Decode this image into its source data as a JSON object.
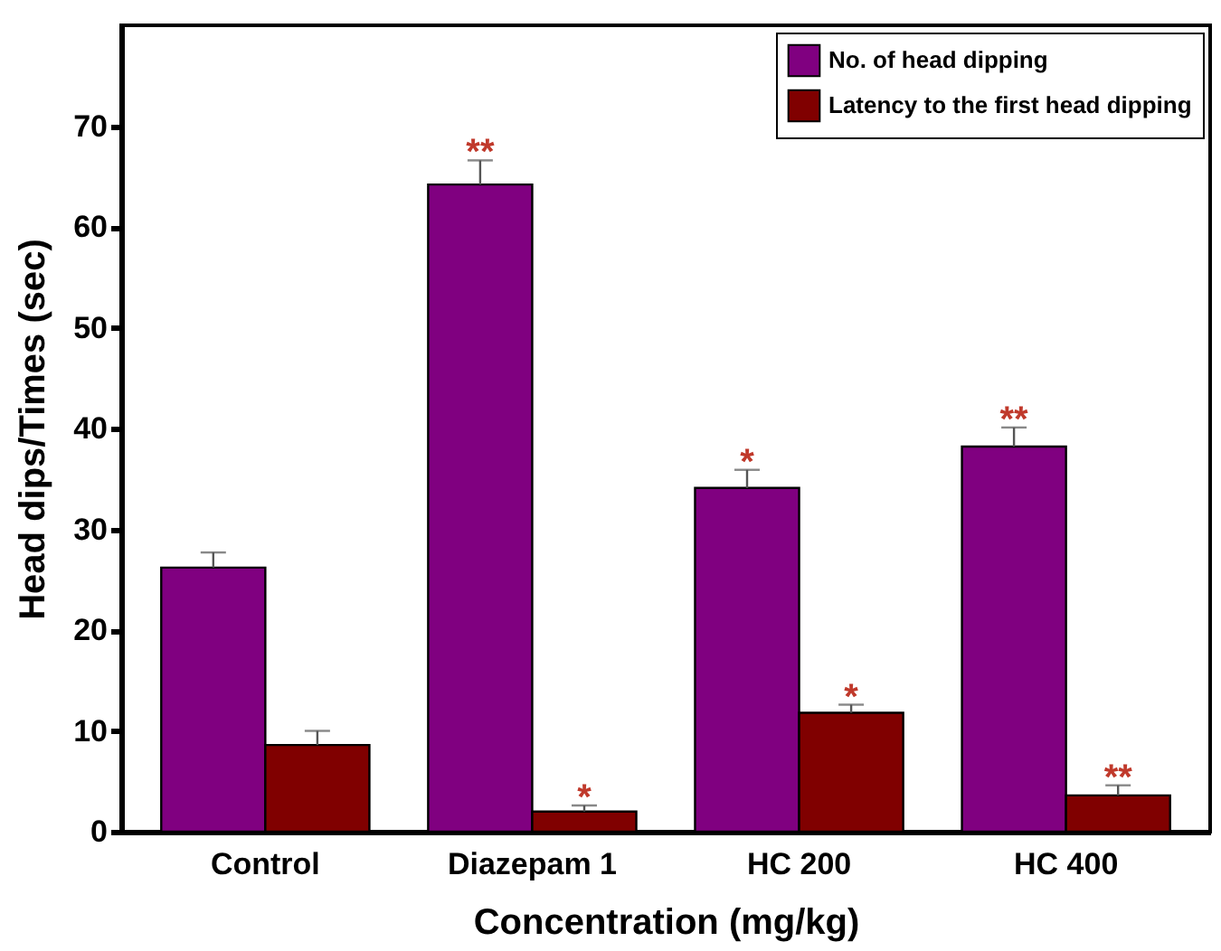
{
  "chart_data": {
    "type": "bar",
    "xlabel": "Concentration (mg/kg)",
    "ylabel": "Head dips/Times (sec)",
    "categories": [
      "Control",
      "Diazepam 1",
      "HC 200",
      "HC 400"
    ],
    "series": [
      {
        "name": "No. of head dipping",
        "color": "#800080",
        "values": [
          26.2,
          64.2,
          34.1,
          38.2
        ],
        "errors": [
          1.5,
          2.4,
          1.8,
          1.9
        ]
      },
      {
        "name": "Latency to the first head dipping",
        "color": "#800000",
        "values": [
          8.6,
          2.0,
          11.8,
          3.6
        ],
        "errors": [
          1.4,
          0.6,
          0.8,
          1.0
        ]
      }
    ],
    "ylim": [
      0,
      80
    ],
    "yticks": [
      0,
      10,
      20,
      30,
      40,
      50,
      60,
      70
    ],
    "annotations": [
      {
        "text": "**",
        "x": "Diazepam 1",
        "y": 64.2
      },
      {
        "text": "*",
        "x": "Diazepam 1",
        "y": 2.0
      },
      {
        "text": "*",
        "x": "HC 200",
        "y": 34.1
      },
      {
        "text": "*",
        "x": "HC 200",
        "y": 11.8
      },
      {
        "text": "**",
        "x": "HC 400",
        "y": 38.2
      },
      {
        "text": "**",
        "x": "HC 400",
        "y": 3.6
      }
    ],
    "grid": false,
    "legend": "top right"
  }
}
